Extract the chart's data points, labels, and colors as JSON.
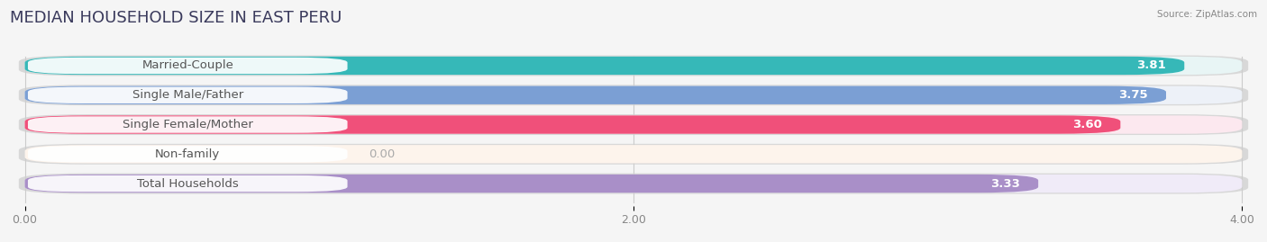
{
  "title": "MEDIAN HOUSEHOLD SIZE IN EAST PERU",
  "source": "Source: ZipAtlas.com",
  "categories": [
    "Married-Couple",
    "Single Male/Father",
    "Single Female/Mother",
    "Non-family",
    "Total Households"
  ],
  "values": [
    3.81,
    3.75,
    3.6,
    0.0,
    3.33
  ],
  "bar_colors": [
    "#36b8b8",
    "#7b9fd4",
    "#f0507a",
    "#f5c99a",
    "#a98fc8"
  ],
  "bg_colors": [
    "#e8f5f5",
    "#edf1f8",
    "#fce8ef",
    "#fdf4ec",
    "#f0ebf8"
  ],
  "row_bg_color": "#efefef",
  "xlim": [
    0,
    4.0
  ],
  "xticks": [
    0.0,
    2.0,
    4.0
  ],
  "xtick_labels": [
    "0.00",
    "2.00",
    "4.00"
  ],
  "title_fontsize": 13,
  "label_fontsize": 9.5,
  "value_fontsize": 9.5,
  "bar_height": 0.62,
  "background_color": "#f5f5f5"
}
